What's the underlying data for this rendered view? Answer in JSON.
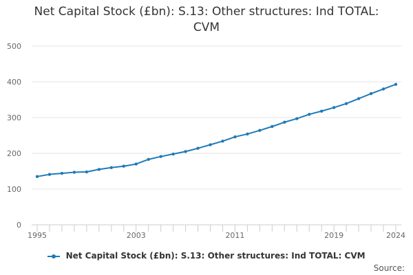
{
  "chart_data": {
    "type": "line",
    "title": "Net Capital Stock (£bn): S.13: Other structures: Ind TOTAL: CVM",
    "xlabel": "",
    "ylabel": "",
    "xlim": [
      1995,
      2024
    ],
    "ylim": [
      0,
      500
    ],
    "x_ticks": [
      "1995",
      "2003",
      "2011",
      "2019",
      "2024"
    ],
    "y_ticks": [
      "0",
      "100",
      "200",
      "300",
      "400",
      "500"
    ],
    "grid": true,
    "legend_position": "bottom",
    "series": [
      {
        "name": "Net Capital Stock (£bn): S.13: Other structures: Ind TOTAL: CVM",
        "color": "#1f7ab8",
        "x": [
          1995,
          1996,
          1997,
          1998,
          1999,
          2000,
          2001,
          2002,
          2003,
          2004,
          2005,
          2006,
          2007,
          2008,
          2009,
          2010,
          2011,
          2012,
          2013,
          2014,
          2015,
          2016,
          2017,
          2018,
          2019,
          2020,
          2021,
          2022,
          2023,
          2024
        ],
        "values": [
          135,
          141,
          144,
          147,
          148,
          155,
          160,
          164,
          170,
          183,
          191,
          198,
          205,
          214,
          224,
          234,
          246,
          254,
          264,
          275,
          287,
          297,
          309,
          318,
          328,
          339,
          353,
          367,
          380,
          393
        ]
      }
    ]
  },
  "source_label": "Source:"
}
